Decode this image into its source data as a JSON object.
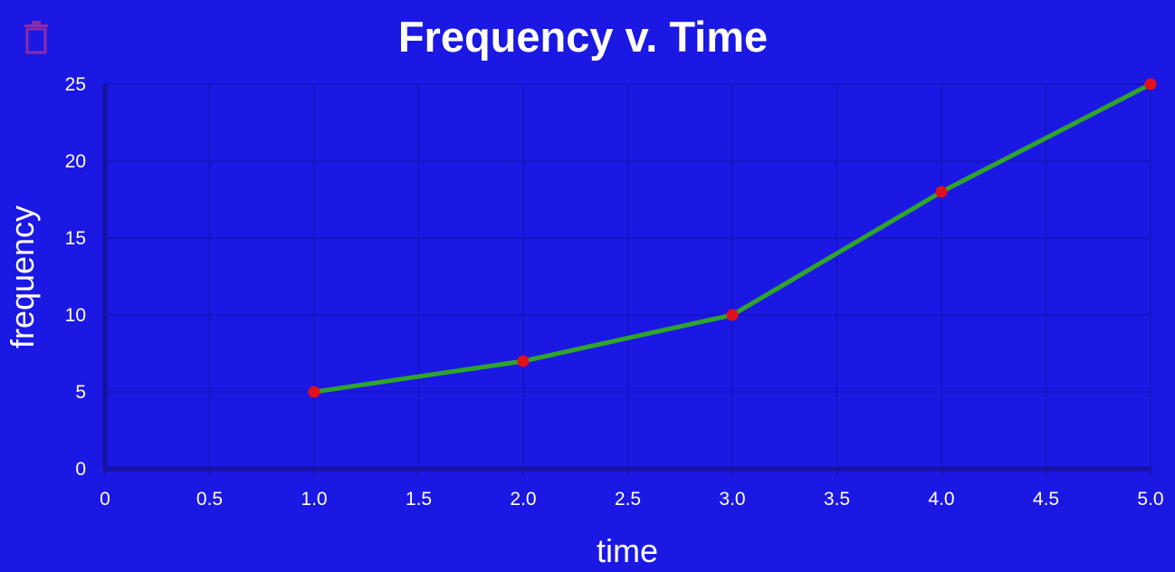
{
  "toolbar": {
    "delete_icon": "trash-icon",
    "delete_icon_color": "#8a2ba8"
  },
  "chart_data": {
    "type": "line",
    "title": "Frequency v. Time",
    "xlabel": "time",
    "ylabel": "frequency",
    "xlim": [
      0,
      5
    ],
    "ylim": [
      0,
      25
    ],
    "x_ticks": [
      "0",
      "0.5",
      "1.0",
      "1.5",
      "2.0",
      "2.5",
      "3.0",
      "3.5",
      "4.0",
      "4.5",
      "5.0"
    ],
    "y_ticks": [
      "0",
      "5",
      "10",
      "15",
      "20",
      "25"
    ],
    "grid": true,
    "series": [
      {
        "x": [
          1,
          2,
          3,
          4,
          5
        ],
        "values": [
          5,
          7,
          10,
          18,
          25
        ],
        "line_color": "#2ea52a",
        "point_color": "#e0101c"
      }
    ],
    "background_color": "#1b18e4",
    "axis_color": "#15129e",
    "grid_color": "#1512b8"
  }
}
